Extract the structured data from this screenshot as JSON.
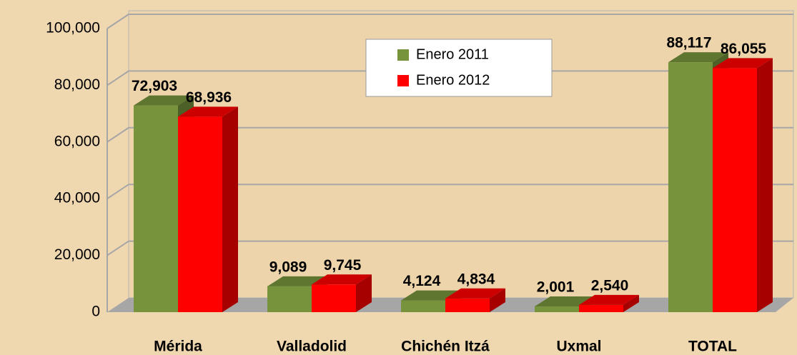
{
  "chart_data": {
    "type": "bar3d",
    "categories": [
      "Mérida",
      "Valladolid",
      "Chichén Itzá",
      "Uxmal",
      "TOTAL"
    ],
    "series": [
      {
        "name": "Enero 2011",
        "color": "#77933c",
        "values": [
          72903,
          9089,
          4124,
          2001,
          88117
        ],
        "value_labels": [
          "72,903",
          "9,089",
          "4,124",
          "2,001",
          "88,117"
        ]
      },
      {
        "name": "Enero 2012",
        "color": "#ff0000",
        "values": [
          68936,
          9745,
          4834,
          2540,
          86055
        ],
        "value_labels": [
          "68,936",
          "9,745",
          "4,834",
          "2,540",
          "86,055"
        ]
      }
    ],
    "ylim": [
      0,
      100000
    ],
    "yticks": [
      0,
      {
        "value": 20000,
        "label": "20,000"
      },
      {
        "value": 40000,
        "label": "40,000"
      },
      {
        "value": 60000,
        "label": "60,000"
      },
      {
        "value": 80000,
        "label": "80,000"
      },
      {
        "value": 100000,
        "label": "100,000"
      }
    ],
    "grid": true,
    "legend": "top"
  }
}
